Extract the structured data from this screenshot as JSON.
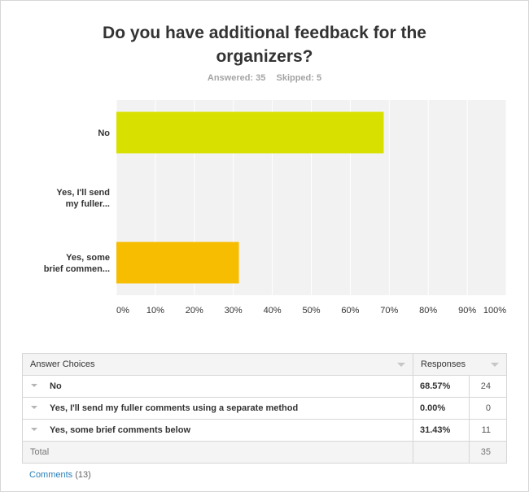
{
  "question": {
    "title_line1": "Do you have additional feedback for the",
    "title_line2": "organizers?",
    "answered": "Answered: 35",
    "skipped": "Skipped: 5"
  },
  "chart_data": {
    "type": "bar",
    "orientation": "horizontal",
    "categories": [
      [
        "No"
      ],
      [
        "Yes, I'll send",
        "my fuller..."
      ],
      [
        "Yes, some",
        "brief commen..."
      ]
    ],
    "values": [
      68.57,
      0.0,
      31.43
    ],
    "colors": [
      "#d8e000",
      "#ffffff",
      "#f7bd00"
    ],
    "xlim": [
      0,
      100
    ],
    "xticks": [
      "0%",
      "10%",
      "20%",
      "30%",
      "40%",
      "50%",
      "60%",
      "70%",
      "80%",
      "90%",
      "100%"
    ],
    "grid": true,
    "plot_bg": "#f2f2f2",
    "grid_color": "#ffffff"
  },
  "table": {
    "headers": [
      "Answer Choices",
      "Responses"
    ],
    "rows": [
      {
        "choice": "No",
        "pct": "68.57%",
        "count": "24"
      },
      {
        "choice": "Yes, I'll send my fuller comments using a separate method",
        "pct": "0.00%",
        "count": "0"
      },
      {
        "choice": "Yes, some brief comments below",
        "pct": "31.43%",
        "count": "11"
      }
    ],
    "total_label": "Total",
    "total_value": "35"
  },
  "comments": {
    "label": "Comments",
    "count": "(13)"
  }
}
